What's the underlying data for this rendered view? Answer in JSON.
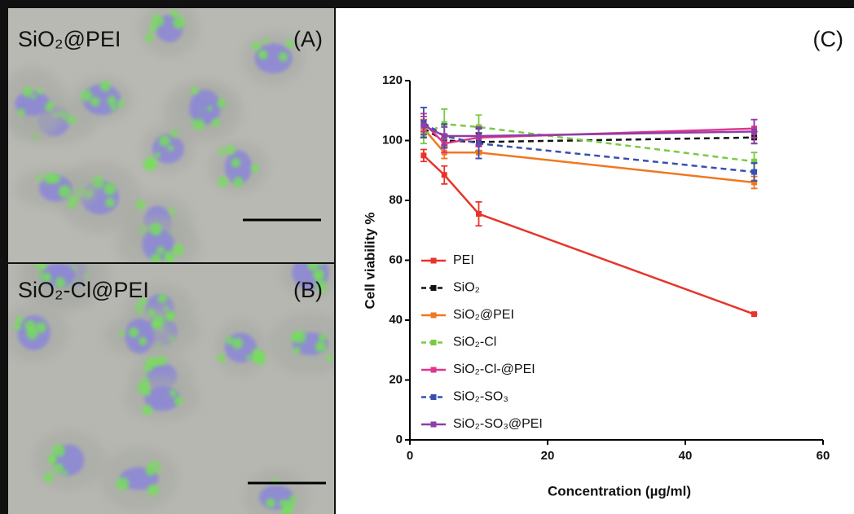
{
  "panels": [
    {
      "label": "SiO₂@PEI",
      "tag": "(A)"
    },
    {
      "label": "SiO₂-Cl@PEI",
      "tag": "(B)"
    }
  ],
  "chart_data": {
    "type": "line",
    "title": "(C)",
    "x_label": "Concentration (µg/ml)",
    "y_label": "Cell viability %",
    "x": [
      2,
      5,
      10,
      50
    ],
    "xlim": [
      0,
      60
    ],
    "xticks": [
      0,
      20,
      40,
      60
    ],
    "ylim": [
      0,
      120
    ],
    "yticks": [
      0,
      20,
      40,
      60,
      80,
      100,
      120
    ],
    "series": [
      {
        "name": "PEI",
        "color": "#e8332a",
        "dashed": false,
        "values": [
          95,
          88.5,
          75.5,
          42
        ],
        "errors": [
          2,
          3,
          4,
          0
        ]
      },
      {
        "name": "SiO₂",
        "color": "#111111",
        "dashed": true,
        "values": [
          104,
          100,
          99.5,
          101
        ],
        "errors": [
          3,
          2,
          3,
          2
        ]
      },
      {
        "name": "SiO₂@PEI",
        "color": "#f07820",
        "dashed": false,
        "values": [
          104,
          96,
          96,
          86
        ],
        "errors": [
          3,
          2,
          2,
          2
        ]
      },
      {
        "name": "SiO₂-Cl",
        "color": "#7ac943",
        "dashed": true,
        "values": [
          102,
          105.5,
          104.5,
          93
        ],
        "errors": [
          3,
          5,
          4,
          3
        ]
      },
      {
        "name": "SiO₂-Cl-@PEI",
        "color": "#e0358c",
        "dashed": false,
        "values": [
          106,
          99,
          101,
          104
        ],
        "errors": [
          3,
          3,
          3,
          3
        ]
      },
      {
        "name": "SiO₂-SO₃",
        "color": "#3a4fb0",
        "dashed": true,
        "values": [
          106,
          101.5,
          99,
          89.5
        ],
        "errors": [
          5,
          4,
          5,
          3
        ]
      },
      {
        "name": "SiO₂-SO₃@PEI",
        "color": "#8e3ea8",
        "dashed": false,
        "values": [
          105,
          101.5,
          101.5,
          103
        ],
        "errors": [
          3,
          3,
          3,
          4
        ]
      }
    ]
  }
}
